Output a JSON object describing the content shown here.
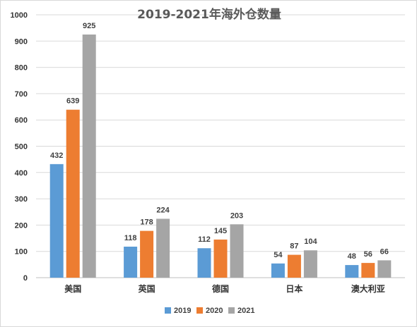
{
  "chart_data": {
    "type": "bar",
    "title": "2019-2021年海外仓数量",
    "categories": [
      "美国",
      "英国",
      "德国",
      "日本",
      "澳大利亚"
    ],
    "series": [
      {
        "name": "2019",
        "values": [
          432,
          118,
          112,
          54,
          48
        ]
      },
      {
        "name": "2020",
        "values": [
          639,
          178,
          145,
          87,
          56
        ]
      },
      {
        "name": "2021",
        "values": [
          925,
          224,
          203,
          104,
          66
        ]
      }
    ],
    "ylim": [
      0,
      1000
    ],
    "yticks": [
      0,
      100,
      200,
      300,
      400,
      500,
      600,
      700,
      800,
      900,
      1000
    ],
    "grid": true,
    "legend_position": "bottom",
    "colors": [
      "#5B9BD5",
      "#ED7D31",
      "#A5A5A5"
    ],
    "xlabel": "",
    "ylabel": ""
  }
}
